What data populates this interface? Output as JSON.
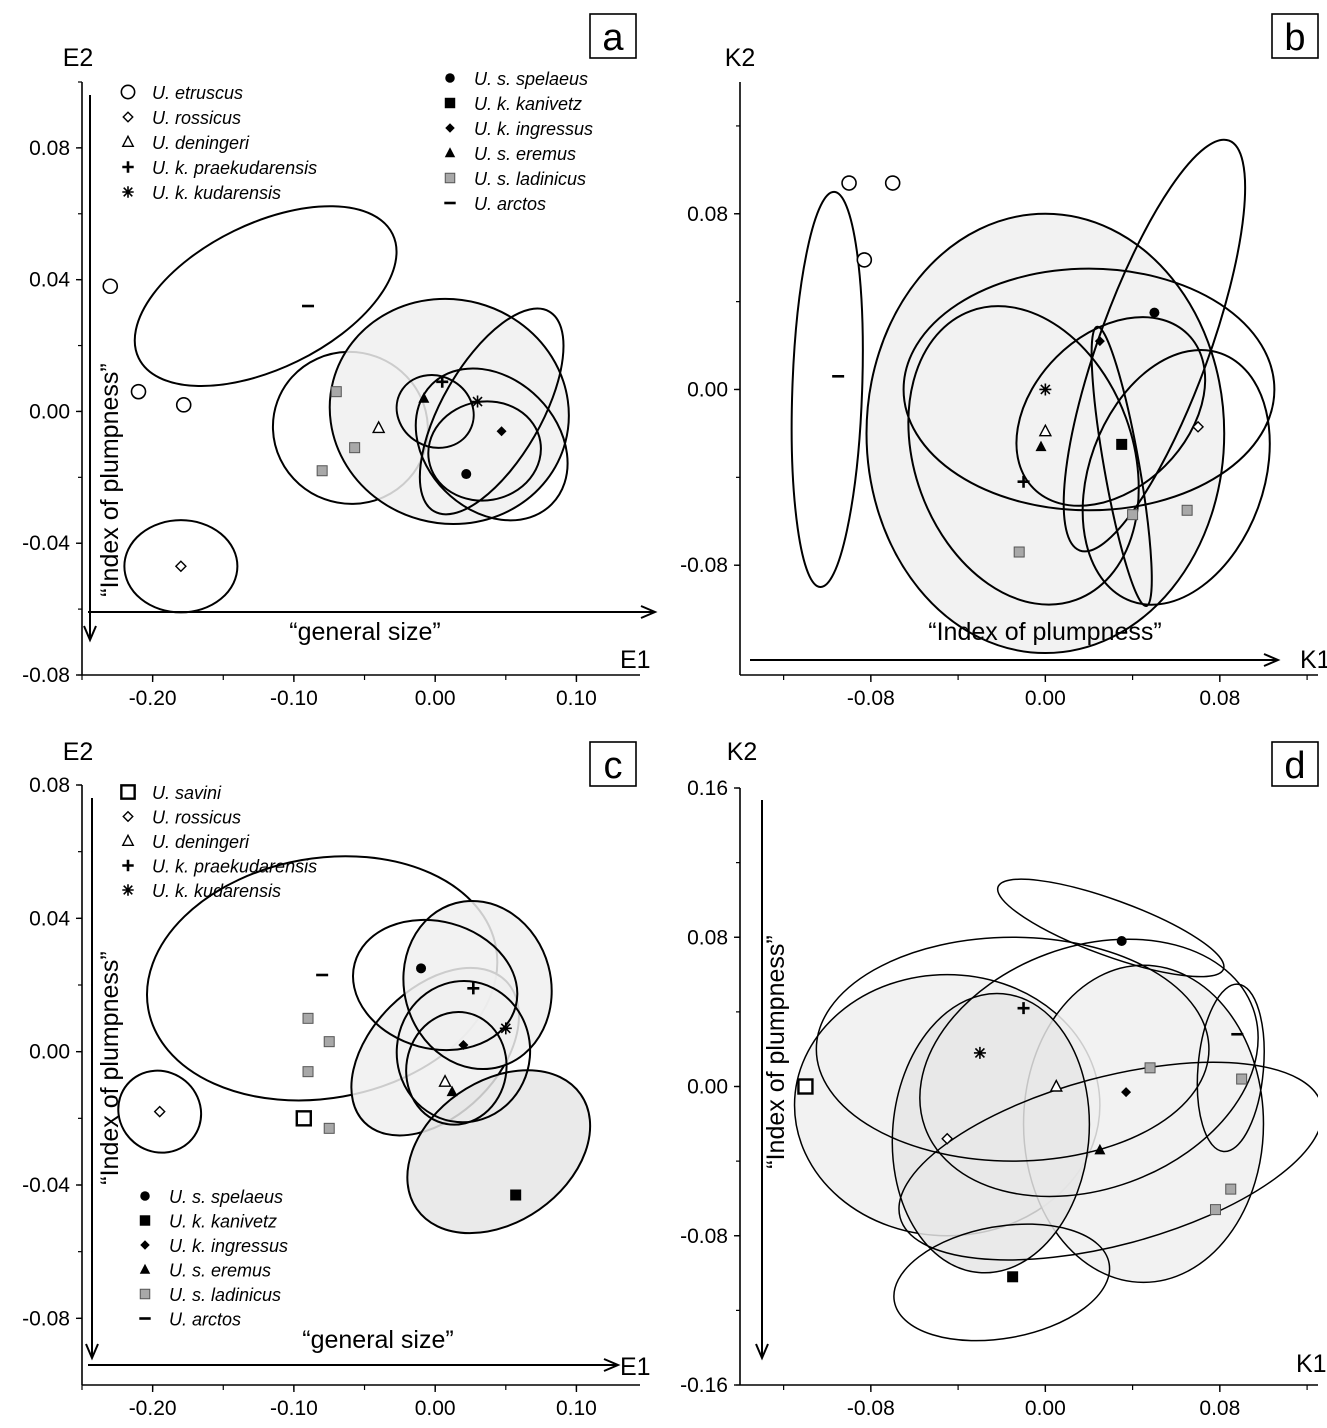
{
  "chart_data": [
    {
      "panel": "a",
      "type": "scatter",
      "xlabel": "E1",
      "ylabel": "E2",
      "x_annotation": "“general size”",
      "y_annotation": "“Index of plumpness”",
      "xlim": [
        -0.25,
        0.145
      ],
      "ylim": [
        -0.08,
        0.1
      ],
      "xticks": [
        "-0.20",
        "-0.10",
        "0.00",
        "0.10"
      ],
      "yticks": [
        "-0.08",
        "-0.04",
        "0.00",
        "0.04",
        "0.08"
      ],
      "legend": {
        "columns": [
          [
            {
              "label": "U. etruscus",
              "marker": "open-circle"
            },
            {
              "label": "U. rossicus",
              "marker": "open-diamond"
            },
            {
              "label": "U. deningeri",
              "marker": "open-triangle"
            },
            {
              "label": "U. k. praekudarensis",
              "marker": "plus"
            },
            {
              "label": "U. k. kudarensis",
              "marker": "asterisk"
            }
          ],
          [
            {
              "label": "U. s. spelaeus",
              "marker": "filled-circle"
            },
            {
              "label": "U. k. kanivetz",
              "marker": "filled-square"
            },
            {
              "label": "U. k. ingressus",
              "marker": "filled-diamond"
            },
            {
              "label": "U. s. eremus",
              "marker": "filled-triangle"
            },
            {
              "label": "U. s. ladinicus",
              "marker": "gray-square"
            },
            {
              "label": "U. arctos",
              "marker": "dash"
            }
          ]
        ]
      },
      "points": [
        {
          "x": -0.23,
          "y": 0.038,
          "marker": "open-circle"
        },
        {
          "x": -0.178,
          "y": 0.002,
          "marker": "open-circle"
        },
        {
          "x": -0.21,
          "y": 0.006,
          "marker": "open-circle"
        },
        {
          "x": -0.18,
          "y": -0.047,
          "marker": "open-diamond"
        },
        {
          "x": -0.04,
          "y": -0.005,
          "marker": "open-triangle"
        },
        {
          "x": 0.005,
          "y": 0.009,
          "marker": "plus"
        },
        {
          "x": 0.03,
          "y": 0.003,
          "marker": "asterisk"
        },
        {
          "x": 0.022,
          "y": -0.019,
          "marker": "filled-circle"
        },
        {
          "x": 0.047,
          "y": -0.006,
          "marker": "filled-diamond"
        },
        {
          "x": -0.008,
          "y": 0.004,
          "marker": "filled-triangle"
        },
        {
          "x": -0.08,
          "y": -0.018,
          "marker": "gray-square"
        },
        {
          "x": -0.057,
          "y": -0.011,
          "marker": "gray-square"
        },
        {
          "x": -0.07,
          "y": 0.006,
          "marker": "gray-square"
        },
        {
          "x": -0.09,
          "y": 0.032,
          "marker": "dash"
        }
      ],
      "ellipses": [
        {
          "cx": -0.12,
          "cy": 0.035,
          "rx": 0.1,
          "ry": 0.022,
          "angle": 26,
          "fill": "none"
        },
        {
          "cx": -0.18,
          "cy": -0.047,
          "rx": 0.04,
          "ry": 0.014,
          "angle": 0,
          "fill": "none"
        },
        {
          "cx": -0.06,
          "cy": -0.005,
          "rx": 0.055,
          "ry": 0.023,
          "angle": -20,
          "fill": "none"
        },
        {
          "cx": 0.01,
          "cy": 0.0,
          "rx": 0.085,
          "ry": 0.034,
          "angle": -15,
          "fill": "#f0f0f0"
        },
        {
          "cx": 0.04,
          "cy": 0.0,
          "rx": 0.035,
          "ry": 0.035,
          "angle": -30,
          "fill": "none"
        },
        {
          "cx": 0.04,
          "cy": -0.01,
          "rx": 0.06,
          "ry": 0.02,
          "angle": -45,
          "fill": "none"
        },
        {
          "cx": 0.0,
          "cy": 0.0,
          "rx": 0.025,
          "ry": 0.012,
          "angle": 60,
          "fill": "none"
        },
        {
          "cx": 0.035,
          "cy": -0.012,
          "rx": 0.04,
          "ry": 0.015,
          "angle": 10,
          "fill": "none"
        }
      ]
    },
    {
      "panel": "b",
      "type": "scatter",
      "xlabel": "K1",
      "ylabel": "K2",
      "x_annotation": "“Index of plumpness”",
      "y_annotation": "",
      "xlim": [
        -0.14,
        0.125
      ],
      "ylim": [
        -0.13,
        0.14
      ],
      "xticks": [
        "-0.08",
        "0.00",
        "0.08"
      ],
      "yticks": [
        "-0.08",
        "0.00",
        "0.08"
      ],
      "legend": null,
      "points": [
        {
          "x": -0.09,
          "y": 0.094,
          "marker": "open-circle"
        },
        {
          "x": -0.07,
          "y": 0.094,
          "marker": "open-circle"
        },
        {
          "x": -0.083,
          "y": 0.059,
          "marker": "open-circle"
        },
        {
          "x": 0.07,
          "y": -0.017,
          "marker": "open-diamond"
        },
        {
          "x": 0.0,
          "y": -0.019,
          "marker": "open-triangle"
        },
        {
          "x": -0.01,
          "y": -0.042,
          "marker": "plus"
        },
        {
          "x": 0.0,
          "y": 0.0,
          "marker": "asterisk"
        },
        {
          "x": 0.05,
          "y": 0.035,
          "marker": "filled-circle"
        },
        {
          "x": 0.035,
          "y": -0.025,
          "marker": "filled-square"
        },
        {
          "x": 0.025,
          "y": 0.022,
          "marker": "filled-diamond"
        },
        {
          "x": -0.002,
          "y": -0.026,
          "marker": "filled-triangle"
        },
        {
          "x": -0.012,
          "y": -0.074,
          "marker": "gray-square"
        },
        {
          "x": 0.04,
          "y": -0.057,
          "marker": "gray-square"
        },
        {
          "x": 0.065,
          "y": -0.055,
          "marker": "gray-square"
        },
        {
          "x": -0.095,
          "y": 0.006,
          "marker": "dash"
        }
      ],
      "ellipses": [
        {
          "cx": -0.1,
          "cy": 0.0,
          "rx": 0.016,
          "ry": 0.09,
          "angle": -2,
          "fill": "none"
        },
        {
          "cx": 0.0,
          "cy": -0.02,
          "rx": 0.082,
          "ry": 0.1,
          "angle": 0,
          "fill": "#f0f0f0"
        },
        {
          "cx": 0.02,
          "cy": 0.0,
          "rx": 0.085,
          "ry": 0.055,
          "angle": 0,
          "fill": "none"
        },
        {
          "cx": -0.01,
          "cy": -0.03,
          "rx": 0.05,
          "ry": 0.07,
          "angle": 20,
          "fill": "none"
        },
        {
          "cx": 0.05,
          "cy": 0.02,
          "rx": 0.1,
          "ry": 0.025,
          "angle": 70,
          "fill": "none"
        },
        {
          "cx": 0.035,
          "cy": -0.035,
          "rx": 0.065,
          "ry": 0.008,
          "angle": -80,
          "fill": "none"
        },
        {
          "cx": 0.06,
          "cy": -0.04,
          "rx": 0.04,
          "ry": 0.06,
          "angle": -20,
          "fill": "none"
        },
        {
          "cx": 0.03,
          "cy": -0.01,
          "rx": 0.05,
          "ry": 0.035,
          "angle": 45,
          "fill": "none"
        }
      ]
    },
    {
      "panel": "c",
      "type": "scatter",
      "xlabel": "E1",
      "ylabel": "E2",
      "x_annotation": "“general size”",
      "y_annotation": "“Index of plumpness”",
      "xlim": [
        -0.25,
        0.145
      ],
      "ylim": [
        -0.1,
        0.08
      ],
      "xticks": [
        "-0.20",
        "-0.10",
        "0.00",
        "0.10"
      ],
      "yticks": [
        "-0.08",
        "-0.04",
        "0.00",
        "0.04",
        "0.08"
      ],
      "legend": {
        "columns": [
          [
            {
              "label": "U. savini",
              "marker": "open-square"
            },
            {
              "label": "U. rossicus",
              "marker": "open-diamond"
            },
            {
              "label": "U. deningeri",
              "marker": "open-triangle"
            },
            {
              "label": "U. k. praekudarensis",
              "marker": "plus"
            },
            {
              "label": "U. k. kudarensis",
              "marker": "asterisk"
            }
          ],
          [
            {
              "label": "U. s. spelaeus",
              "marker": "filled-circle"
            },
            {
              "label": "U. k. kanivetz",
              "marker": "filled-square"
            },
            {
              "label": "U. k. ingressus",
              "marker": "filled-diamond"
            },
            {
              "label": "U. s. eremus",
              "marker": "filled-triangle"
            },
            {
              "label": "U. s. ladinicus",
              "marker": "gray-square"
            },
            {
              "label": "U. arctos",
              "marker": "dash"
            }
          ]
        ]
      },
      "points": [
        {
          "x": -0.093,
          "y": -0.02,
          "marker": "open-square"
        },
        {
          "x": -0.195,
          "y": -0.018,
          "marker": "open-diamond"
        },
        {
          "x": 0.007,
          "y": -0.009,
          "marker": "open-triangle"
        },
        {
          "x": 0.027,
          "y": 0.019,
          "marker": "plus"
        },
        {
          "x": 0.05,
          "y": 0.007,
          "marker": "asterisk"
        },
        {
          "x": -0.01,
          "y": 0.025,
          "marker": "filled-circle"
        },
        {
          "x": 0.057,
          "y": -0.043,
          "marker": "filled-square"
        },
        {
          "x": 0.02,
          "y": 0.002,
          "marker": "filled-diamond"
        },
        {
          "x": 0.012,
          "y": -0.012,
          "marker": "filled-triangle"
        },
        {
          "x": -0.09,
          "y": 0.01,
          "marker": "gray-square"
        },
        {
          "x": -0.075,
          "y": 0.003,
          "marker": "gray-square"
        },
        {
          "x": -0.09,
          "y": -0.006,
          "marker": "gray-square"
        },
        {
          "x": -0.075,
          "y": -0.023,
          "marker": "gray-square"
        },
        {
          "x": -0.08,
          "y": 0.023,
          "marker": "dash"
        }
      ],
      "ellipses": [
        {
          "cx": -0.08,
          "cy": 0.022,
          "rx": 0.125,
          "ry": 0.036,
          "angle": 10,
          "fill": "none"
        },
        {
          "cx": -0.195,
          "cy": -0.018,
          "rx": 0.03,
          "ry": 0.012,
          "angle": -40,
          "fill": "none"
        },
        {
          "cx": 0.0,
          "cy": 0.0,
          "rx": 0.045,
          "ry": 0.03,
          "angle": -45,
          "fill": "#f0f0f0"
        },
        {
          "cx": 0.03,
          "cy": 0.02,
          "rx": 0.06,
          "ry": 0.022,
          "angle": -75,
          "fill": "#f0f0f0"
        },
        {
          "cx": 0.045,
          "cy": -0.03,
          "rx": 0.05,
          "ry": 0.03,
          "angle": -55,
          "fill": "#e6e6e6"
        },
        {
          "cx": 0.0,
          "cy": 0.02,
          "rx": 0.045,
          "ry": 0.025,
          "angle": 75,
          "fill": "none"
        },
        {
          "cx": 0.02,
          "cy": 0.0,
          "rx": 0.05,
          "ry": 0.02,
          "angle": 85,
          "fill": "none"
        },
        {
          "cx": 0.015,
          "cy": -0.005,
          "rx": 0.04,
          "ry": 0.015,
          "angle": 80,
          "fill": "none"
        }
      ]
    },
    {
      "panel": "d",
      "type": "scatter",
      "xlabel": "K1",
      "ylabel": "K2",
      "x_annotation": "",
      "y_annotation": "“Index of plumpness”",
      "xlim": [
        -0.14,
        0.125
      ],
      "ylim": [
        -0.16,
        0.16
      ],
      "xticks": [
        "-0.08",
        "0.00",
        "0.08"
      ],
      "yticks": [
        "-0.16",
        "-0.08",
        "0.00",
        "0.08",
        "0.16"
      ],
      "legend": null,
      "points": [
        {
          "x": -0.11,
          "y": 0.0,
          "marker": "open-square"
        },
        {
          "x": -0.045,
          "y": -0.028,
          "marker": "open-diamond"
        },
        {
          "x": 0.005,
          "y": 0.0,
          "marker": "open-triangle"
        },
        {
          "x": -0.01,
          "y": 0.042,
          "marker": "plus"
        },
        {
          "x": -0.03,
          "y": 0.018,
          "marker": "asterisk"
        },
        {
          "x": 0.035,
          "y": 0.078,
          "marker": "filled-circle"
        },
        {
          "x": -0.015,
          "y": -0.102,
          "marker": "filled-square"
        },
        {
          "x": 0.037,
          "y": -0.003,
          "marker": "filled-diamond"
        },
        {
          "x": 0.025,
          "y": -0.034,
          "marker": "filled-triangle"
        },
        {
          "x": 0.048,
          "y": 0.01,
          "marker": "gray-square"
        },
        {
          "x": 0.09,
          "y": 0.004,
          "marker": "gray-square"
        },
        {
          "x": 0.085,
          "y": -0.055,
          "marker": "gray-square"
        },
        {
          "x": 0.078,
          "y": -0.066,
          "marker": "gray-square"
        },
        {
          "x": 0.088,
          "y": 0.028,
          "marker": "dash"
        }
      ],
      "ellipses": [
        {
          "cx": -0.045,
          "cy": -0.01,
          "rx": 0.07,
          "ry": 0.07,
          "angle": 0,
          "fill": "#f0f0f0"
        },
        {
          "cx": 0.045,
          "cy": -0.02,
          "rx": 0.055,
          "ry": 0.085,
          "angle": 0,
          "fill": "#f0f0f0"
        },
        {
          "cx": -0.025,
          "cy": -0.025,
          "rx": 0.045,
          "ry": 0.075,
          "angle": -5,
          "fill": "#e6e6e6"
        },
        {
          "cx": -0.015,
          "cy": 0.02,
          "rx": 0.09,
          "ry": 0.06,
          "angle": 0,
          "fill": "none"
        },
        {
          "cx": 0.02,
          "cy": 0.01,
          "rx": 0.08,
          "ry": 0.065,
          "angle": 20,
          "fill": "none"
        },
        {
          "cx": 0.03,
          "cy": -0.04,
          "rx": 0.1,
          "ry": 0.045,
          "angle": 15,
          "fill": "none"
        },
        {
          "cx": -0.02,
          "cy": -0.105,
          "rx": 0.05,
          "ry": 0.03,
          "angle": 10,
          "fill": "none"
        },
        {
          "cx": 0.03,
          "cy": 0.085,
          "rx": 0.055,
          "ry": 0.015,
          "angle": -20,
          "fill": "none"
        },
        {
          "cx": 0.085,
          "cy": 0.01,
          "rx": 0.015,
          "ry": 0.045,
          "angle": -5,
          "fill": "none"
        }
      ]
    }
  ]
}
